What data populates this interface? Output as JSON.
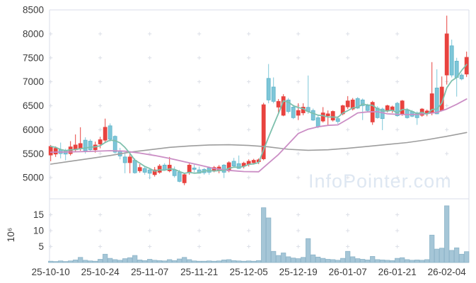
{
  "watermark": "InfoPointer.com",
  "colors": {
    "up": "#e8433f",
    "down_fill": "#7dc6d8",
    "down_stroke": "#5fb3c9",
    "volume_fill": "#a5c6d7",
    "volume_stroke": "#8db4c8",
    "ma_short": "#7ec0ad",
    "ma_mid": "#cb8ec5",
    "ma_long": "#9d9d9d",
    "axis": "#d9dee8",
    "grid_plus": "#dcdfe7",
    "tick_text": "#3b3b3b",
    "watermark_text": "#dee7f2"
  },
  "chart_data": {
    "type": "candlestick_with_volume",
    "title": "",
    "grid": "plus-markers-at-tick-intersections",
    "legend_position": "none",
    "price_axis": {
      "tick_labels": [
        "8500",
        "8000",
        "7500",
        "7000",
        "6500",
        "6000",
        "5500",
        "5000"
      ],
      "ticks": [
        8500,
        8000,
        7500,
        7000,
        6500,
        6000,
        5500,
        5000
      ],
      "range": [
        4556,
        8500
      ]
    },
    "volume_axis": {
      "tick_labels": [
        "15",
        "10",
        "5"
      ],
      "ticks": [
        15,
        10,
        5
      ],
      "unit_label": "10⁶",
      "unit": "millions of shares",
      "range": [
        0,
        20
      ]
    },
    "x_ticks": [
      {
        "label": "25-10-10",
        "index": 0
      },
      {
        "label": "25-10-24",
        "index": 10
      },
      {
        "label": "25-11-07",
        "index": 20
      },
      {
        "label": "25-11-21",
        "index": 30
      },
      {
        "label": "25-12-05",
        "index": 40
      },
      {
        "label": "25-12-19",
        "index": 50
      },
      {
        "label": "26-01-07",
        "index": 60
      },
      {
        "label": "26-01-21",
        "index": 70
      },
      {
        "label": "26-02-04",
        "index": 80
      }
    ],
    "candle_columns": [
      "open",
      "high",
      "low",
      "close",
      "volume_millions"
    ],
    "candles": [
      [
        5470,
        5680,
        5340,
        5650,
        0.4
      ],
      [
        5490,
        5650,
        5430,
        5610,
        0.3
      ],
      [
        5580,
        5730,
        5400,
        5500,
        0.5
      ],
      [
        5560,
        5600,
        5360,
        5490,
        0.3
      ],
      [
        5500,
        5760,
        5460,
        5640,
        0.5
      ],
      [
        5580,
        5900,
        5530,
        5680,
        0.8
      ],
      [
        5600,
        6050,
        5560,
        5710,
        1.6
      ],
      [
        5780,
        5840,
        5500,
        5560,
        0.7
      ],
      [
        5760,
        5800,
        5550,
        5580,
        0.5
      ],
      [
        5580,
        5750,
        5520,
        5680,
        0.4
      ],
      [
        5700,
        5850,
        5610,
        5790,
        1.0
      ],
      [
        5780,
        6230,
        5730,
        6050,
        2.6
      ],
      [
        6080,
        6130,
        5750,
        5800,
        1.3
      ],
      [
        5860,
        5880,
        5500,
        5530,
        0.9
      ],
      [
        5560,
        5620,
        5380,
        5450,
        0.7
      ],
      [
        5430,
        5530,
        5090,
        5310,
        1.2
      ],
      [
        5310,
        5530,
        5090,
        5430,
        1.5
      ],
      [
        5360,
        5400,
        5080,
        5100,
        2.2
      ],
      [
        5140,
        5280,
        5100,
        5210,
        0.8
      ],
      [
        5190,
        5240,
        5060,
        5110,
        0.6
      ],
      [
        5160,
        5200,
        4970,
        5090,
        1.0
      ],
      [
        5060,
        5220,
        5020,
        5160,
        0.7
      ],
      [
        5110,
        5280,
        5080,
        5240,
        0.6
      ],
      [
        5260,
        5300,
        5140,
        5160,
        0.5
      ],
      [
        5140,
        5430,
        5110,
        5260,
        0.9
      ],
      [
        5160,
        5230,
        5000,
        5040,
        0.6
      ],
      [
        5110,
        5160,
        4900,
        4920,
        1.1
      ],
      [
        4890,
        5090,
        4840,
        5060,
        1.6
      ],
      [
        5110,
        5310,
        5060,
        5260,
        0.9
      ],
      [
        5200,
        5270,
        5110,
        5170,
        0.5
      ],
      [
        5160,
        5230,
        5080,
        5090,
        0.4
      ],
      [
        5170,
        5200,
        5060,
        5100,
        0.4
      ],
      [
        5200,
        5230,
        5060,
        5110,
        0.5
      ],
      [
        5140,
        5240,
        5110,
        5210,
        0.4
      ],
      [
        5150,
        5260,
        5090,
        5220,
        0.5
      ],
      [
        5260,
        5280,
        4990,
        5110,
        0.8
      ],
      [
        5140,
        5340,
        5110,
        5310,
        0.9
      ],
      [
        5340,
        5410,
        5230,
        5240,
        0.6
      ],
      [
        5290,
        5460,
        5180,
        5190,
        0.5
      ],
      [
        5240,
        5330,
        5190,
        5300,
        0.4
      ],
      [
        5280,
        5380,
        5230,
        5340,
        0.5
      ],
      [
        5310,
        5390,
        5270,
        5360,
        0.4
      ],
      [
        5330,
        5400,
        5280,
        5370,
        0.6
      ],
      [
        5390,
        6560,
        5360,
        6520,
        17.2
      ],
      [
        7070,
        7370,
        6550,
        6620,
        14.0
      ],
      [
        6890,
        7090,
        6550,
        6590,
        3.5
      ],
      [
        6470,
        6640,
        6330,
        6590,
        2.2
      ],
      [
        6300,
        6740,
        6280,
        6690,
        3.0
      ],
      [
        6620,
        6660,
        6340,
        6380,
        1.8
      ],
      [
        6470,
        6520,
        6220,
        6250,
        1.4
      ],
      [
        6300,
        6550,
        6200,
        6400,
        1.2
      ],
      [
        6350,
        6550,
        6300,
        6470,
        1.6
      ],
      [
        6465,
        7130,
        6330,
        6380,
        7.5
      ],
      [
        6400,
        6440,
        6180,
        6200,
        2.4
      ],
      [
        6250,
        6290,
        6030,
        6060,
        1.7
      ],
      [
        6180,
        6470,
        6150,
        6350,
        1.3
      ],
      [
        6290,
        6400,
        6080,
        6330,
        1.0
      ],
      [
        6200,
        6400,
        6170,
        6380,
        0.9
      ],
      [
        6230,
        6280,
        6120,
        6170,
        0.7
      ],
      [
        6330,
        6520,
        6300,
        6500,
        1.3
      ],
      [
        6475,
        6700,
        6430,
        6600,
        3.5
      ],
      [
        6430,
        6660,
        6400,
        6620,
        1.8
      ],
      [
        6650,
        6680,
        6430,
        6450,
        1.2
      ],
      [
        6620,
        6650,
        6200,
        6500,
        1.0
      ],
      [
        6500,
        6540,
        6380,
        6400,
        0.8
      ],
      [
        6160,
        6600,
        6100,
        6570,
        1.9
      ],
      [
        6450,
        6490,
        6230,
        6250,
        0.9
      ],
      [
        6430,
        6460,
        5990,
        6230,
        0.8
      ],
      [
        6400,
        6520,
        6360,
        6500,
        0.7
      ],
      [
        6400,
        6500,
        6350,
        6475,
        0.6
      ],
      [
        6550,
        6580,
        6270,
        6290,
        1.3
      ],
      [
        6330,
        6620,
        6290,
        6600,
        1.5
      ],
      [
        6400,
        6450,
        6230,
        6250,
        0.9
      ],
      [
        6380,
        6410,
        6260,
        6280,
        0.7
      ],
      [
        6350,
        6380,
        6100,
        6250,
        0.8
      ],
      [
        6300,
        6450,
        6270,
        6430,
        0.7
      ],
      [
        6350,
        6420,
        6280,
        6390,
        0.9
      ],
      [
        6350,
        7410,
        6300,
        6750,
        8.6
      ],
      [
        6870,
        7260,
        6320,
        6330,
        4.2
      ],
      [
        6400,
        7110,
        6390,
        6890,
        4.5
      ],
      [
        7140,
        8380,
        6940,
        8000,
        17.8
      ],
      [
        7750,
        7880,
        7090,
        7140,
        3.8
      ],
      [
        7430,
        7500,
        6690,
        7090,
        4.6
      ],
      [
        7140,
        7180,
        7030,
        7060,
        2.6
      ],
      [
        7160,
        7630,
        7100,
        7510,
        3.4
      ]
    ],
    "moving_averages": {
      "short": {
        "window": 5,
        "source": "close",
        "computed": true
      },
      "mid": {
        "points": [
          [
            0,
            5530
          ],
          [
            4,
            5535
          ],
          [
            8,
            5545
          ],
          [
            12,
            5560
          ],
          [
            15,
            5550
          ],
          [
            18,
            5510
          ],
          [
            21,
            5460
          ],
          [
            24,
            5400
          ],
          [
            27,
            5330
          ],
          [
            30,
            5260
          ],
          [
            33,
            5190
          ],
          [
            36,
            5150
          ],
          [
            39,
            5125
          ],
          [
            42,
            5120
          ],
          [
            44,
            5300
          ],
          [
            46,
            5480
          ],
          [
            48,
            5700
          ],
          [
            50,
            5920
          ],
          [
            52,
            6010
          ],
          [
            54,
            6060
          ],
          [
            56,
            6090
          ],
          [
            58,
            6100
          ],
          [
            60,
            6220
          ],
          [
            62,
            6350
          ],
          [
            64,
            6370
          ],
          [
            66,
            6375
          ],
          [
            68,
            6330
          ],
          [
            70,
            6320
          ],
          [
            72,
            6315
          ],
          [
            74,
            6320
          ],
          [
            76,
            6335
          ],
          [
            78,
            6360
          ],
          [
            80,
            6430
          ],
          [
            82,
            6530
          ],
          [
            84,
            6640
          ]
        ]
      },
      "long": {
        "points": [
          [
            0,
            5280
          ],
          [
            4,
            5340
          ],
          [
            8,
            5400
          ],
          [
            12,
            5460
          ],
          [
            16,
            5530
          ],
          [
            20,
            5580
          ],
          [
            24,
            5630
          ],
          [
            28,
            5660
          ],
          [
            32,
            5680
          ],
          [
            36,
            5685
          ],
          [
            40,
            5670
          ],
          [
            44,
            5640
          ],
          [
            48,
            5590
          ],
          [
            52,
            5570
          ],
          [
            56,
            5580
          ],
          [
            60,
            5610
          ],
          [
            64,
            5650
          ],
          [
            68,
            5690
          ],
          [
            72,
            5730
          ],
          [
            76,
            5790
          ],
          [
            80,
            5860
          ],
          [
            84,
            5940
          ]
        ]
      }
    }
  }
}
